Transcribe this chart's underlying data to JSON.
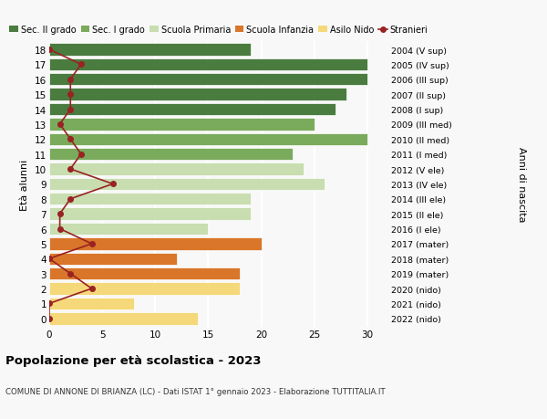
{
  "ages": [
    18,
    17,
    16,
    15,
    14,
    13,
    12,
    11,
    10,
    9,
    8,
    7,
    6,
    5,
    4,
    3,
    2,
    1,
    0
  ],
  "right_labels": [
    "2004 (V sup)",
    "2005 (IV sup)",
    "2006 (III sup)",
    "2007 (II sup)",
    "2008 (I sup)",
    "2009 (III med)",
    "2010 (II med)",
    "2011 (I med)",
    "2012 (V ele)",
    "2013 (IV ele)",
    "2014 (III ele)",
    "2015 (II ele)",
    "2016 (I ele)",
    "2017 (mater)",
    "2018 (mater)",
    "2019 (mater)",
    "2020 (nido)",
    "2021 (nido)",
    "2022 (nido)"
  ],
  "bar_values": [
    19,
    30,
    30,
    28,
    27,
    25,
    30,
    23,
    24,
    26,
    19,
    19,
    15,
    20,
    12,
    18,
    18,
    8,
    14
  ],
  "bar_colors": [
    "#4a7c40",
    "#4a7c40",
    "#4a7c40",
    "#4a7c40",
    "#4a7c40",
    "#7aaa5c",
    "#7aaa5c",
    "#7aaa5c",
    "#c8ddb0",
    "#c8ddb0",
    "#c8ddb0",
    "#c8ddb0",
    "#c8ddb0",
    "#d9762a",
    "#d9762a",
    "#d9762a",
    "#f5d87a",
    "#f5d87a",
    "#f5d87a"
  ],
  "stranieri_values": [
    0,
    3,
    2,
    2,
    2,
    1,
    2,
    3,
    2,
    6,
    2,
    1,
    1,
    4,
    0,
    2,
    4,
    0,
    0
  ],
  "title": "Popolazione per età scolastica - 2023",
  "subtitle": "COMUNE DI ANNONE DI BRIANZA (LC) - Dati ISTAT 1° gennaio 2023 - Elaborazione TUTTITALIA.IT",
  "ylabel": "Età alunni",
  "right_ylabel": "Anni di nascita",
  "xlim": [
    0,
    32
  ],
  "xticks": [
    0,
    5,
    10,
    15,
    20,
    25,
    30
  ],
  "legend_labels": [
    "Sec. II grado",
    "Sec. I grado",
    "Scuola Primaria",
    "Scuola Infanzia",
    "Asilo Nido",
    "Stranieri"
  ],
  "legend_colors": [
    "#4a7c40",
    "#7aaa5c",
    "#c8ddb0",
    "#d9762a",
    "#f5d87a",
    "#aa2222"
  ],
  "bg_color": "#f8f8f8",
  "grid_color": "#ffffff",
  "stranieri_line_color": "#992222",
  "stranieri_dot_color": "#992222"
}
